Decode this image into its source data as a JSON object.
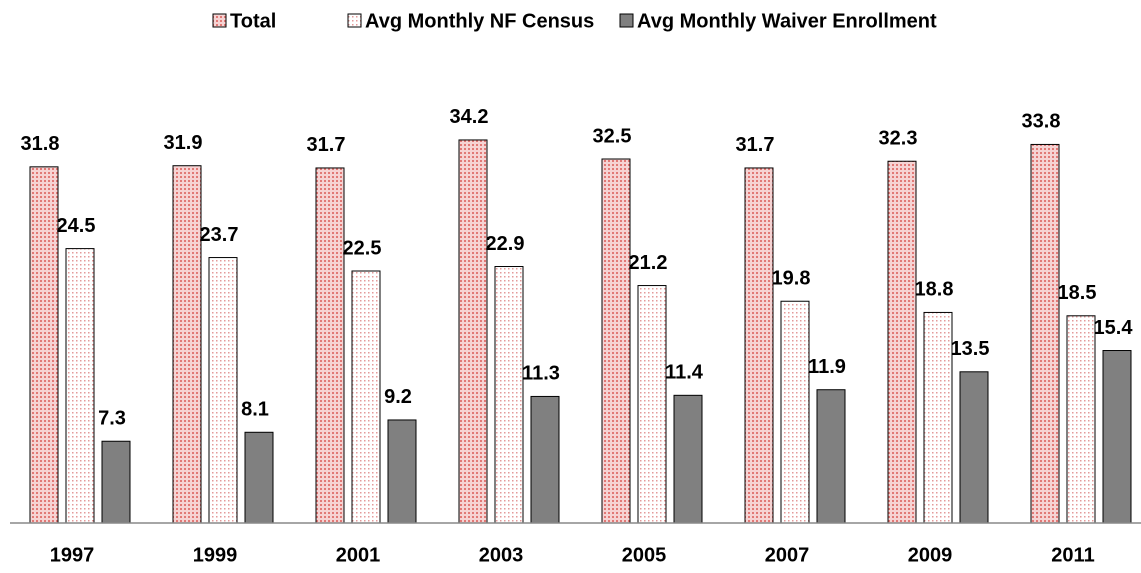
{
  "chart_data": {
    "type": "bar",
    "categories": [
      "1997",
      "1999",
      "2001",
      "2003",
      "2005",
      "2007",
      "2009",
      "2011"
    ],
    "series": [
      {
        "name": "Total",
        "color": "#e9a3a3",
        "values": [
          31.8,
          31.9,
          31.7,
          34.2,
          32.5,
          31.7,
          32.3,
          33.8
        ]
      },
      {
        "name": "Avg Monthly NF Census",
        "color": "#fbe9e9",
        "values": [
          24.5,
          23.7,
          22.5,
          22.9,
          21.2,
          19.8,
          18.8,
          18.5
        ]
      },
      {
        "name": "Avg Monthly Waiver Enrollment",
        "color": "#808080",
        "values": [
          7.3,
          8.1,
          9.2,
          11.3,
          11.4,
          11.9,
          13.5,
          15.4
        ]
      }
    ],
    "ylim": [
      0,
      40
    ]
  }
}
